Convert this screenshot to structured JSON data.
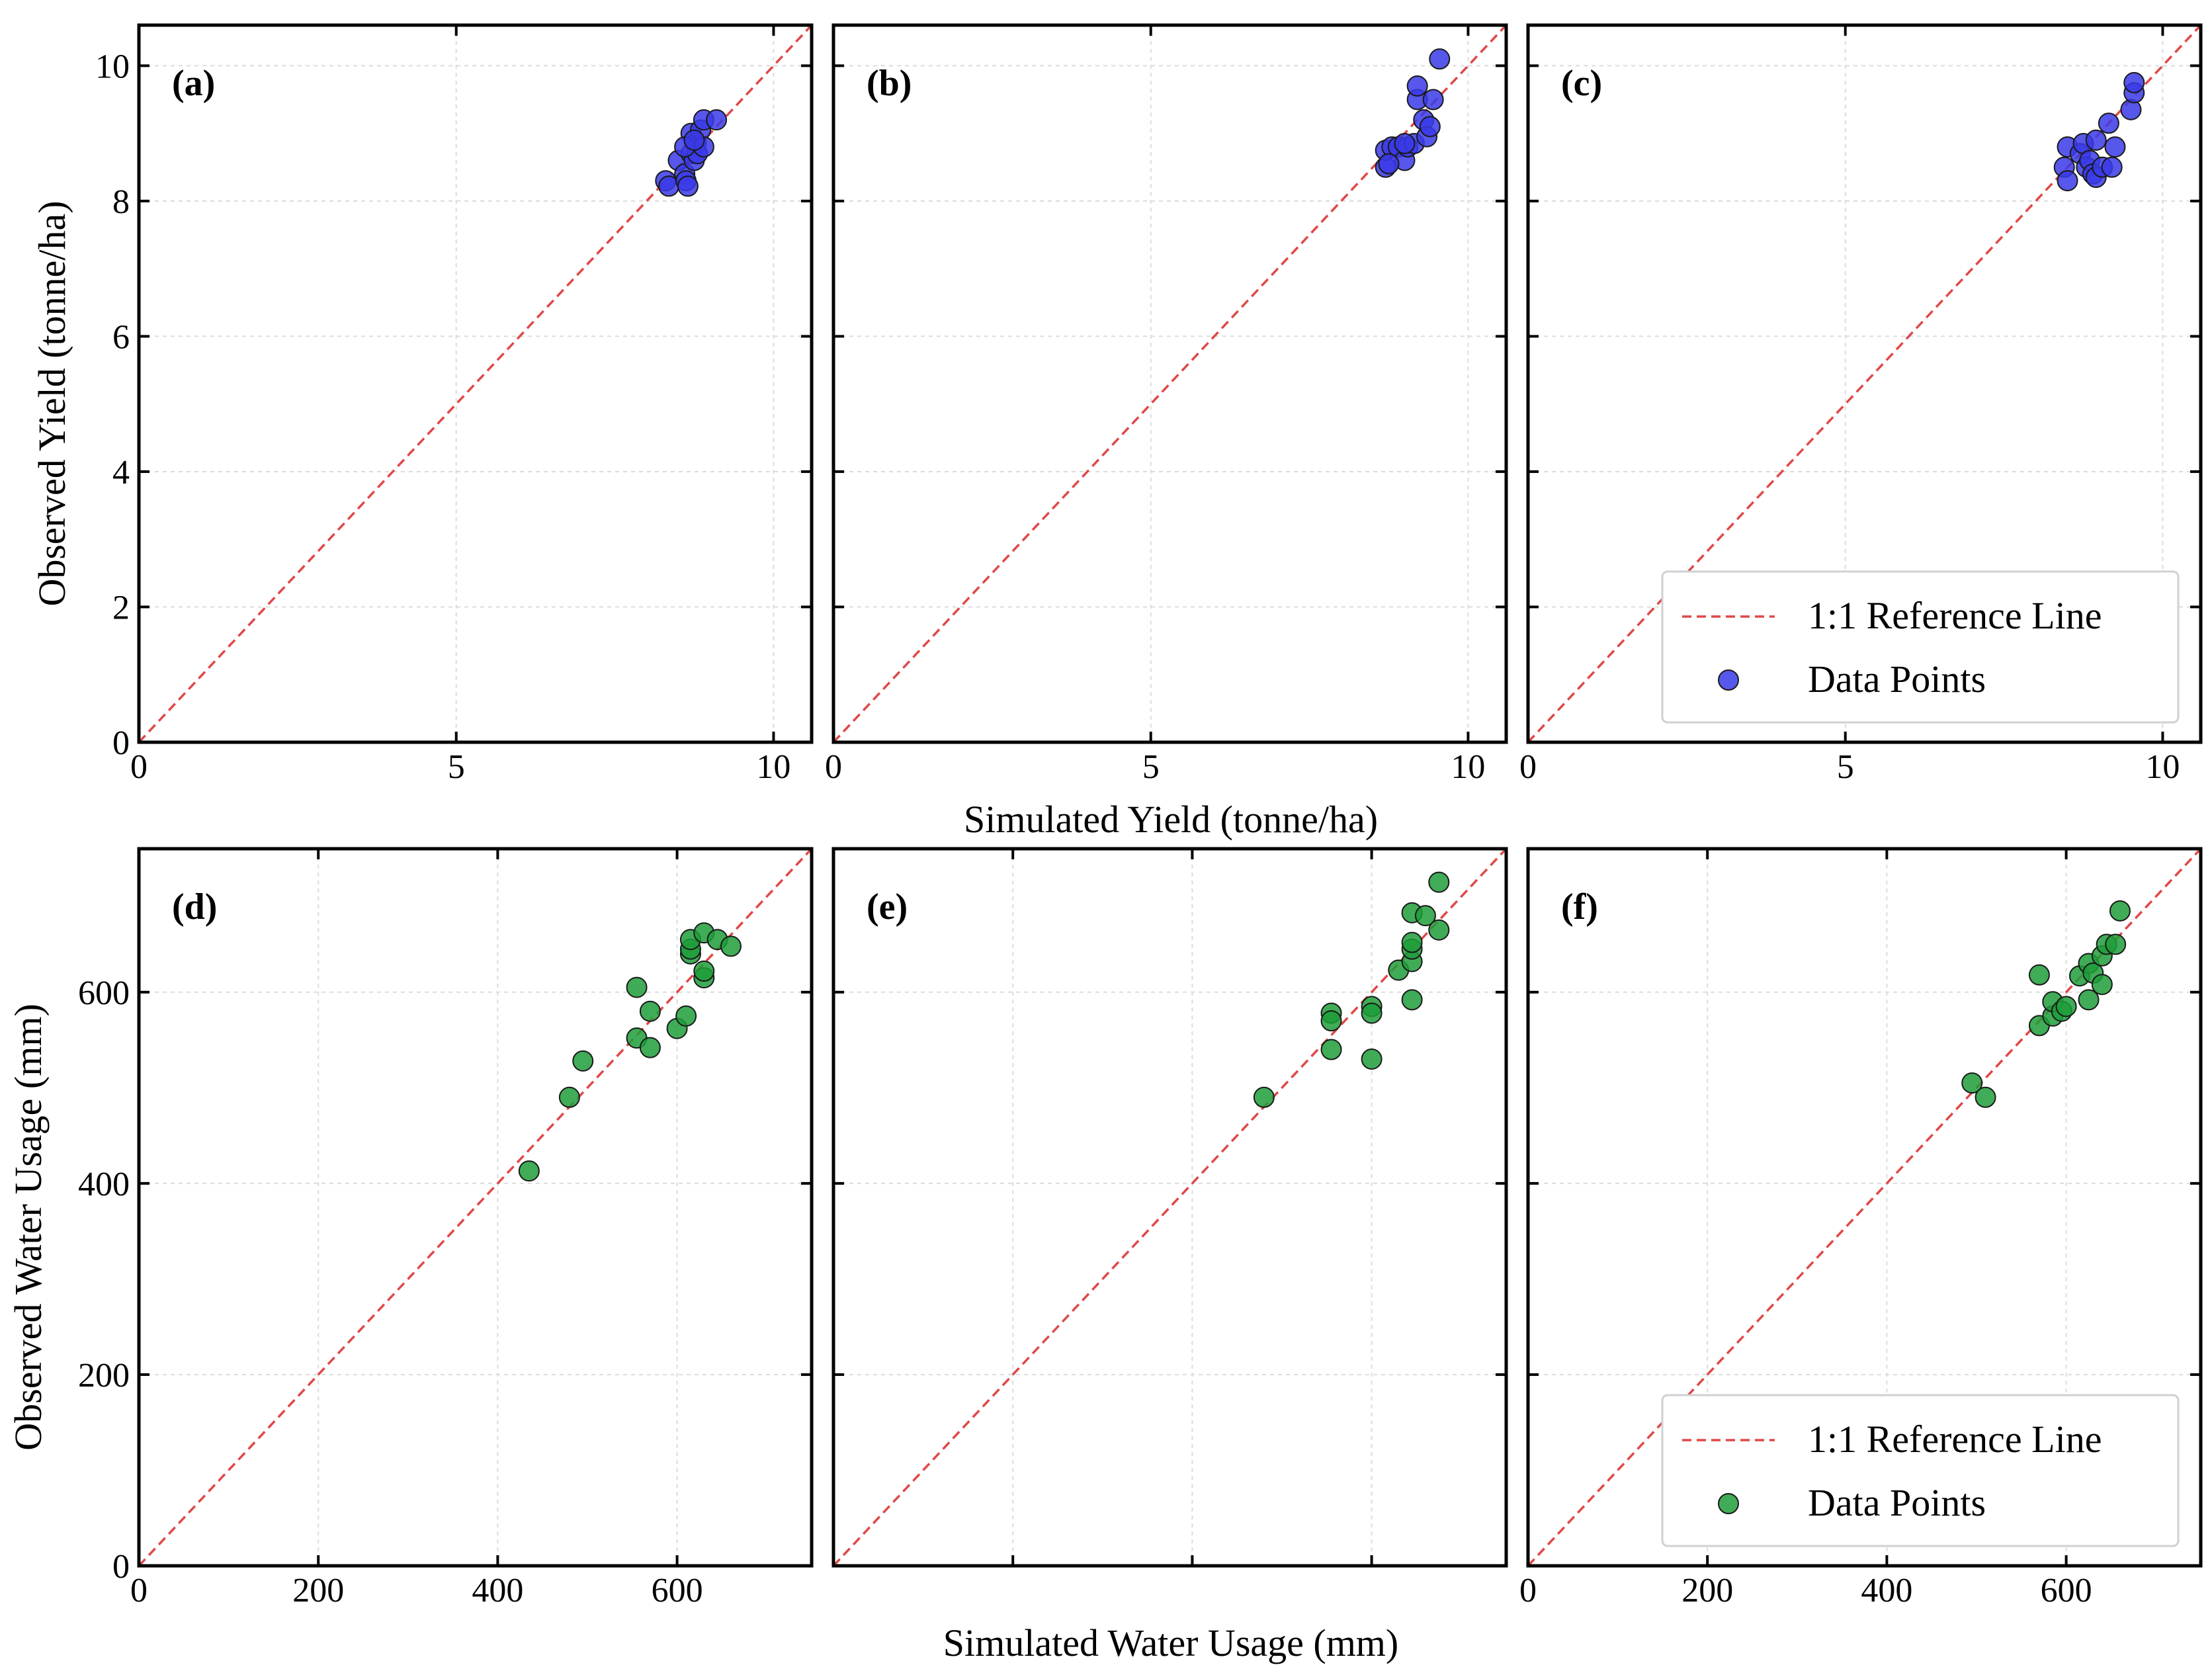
{
  "figure": {
    "xlabel_top": "Simulated Yield (tonne/ha)",
    "ylabel_top": "Observed Yield (tonne/ha)",
    "xlabel_bottom": "Simulated Water Usage (mm)",
    "ylabel_bottom": "Observed Water Usage (mm)"
  },
  "legend": {
    "reference_line": "1:1 Reference Line",
    "data_points": "Data Points"
  },
  "colors": {
    "yield_points": "#3a3ae8",
    "water_points": "#1f9e3a",
    "reference_line": "#e04848"
  },
  "chart_data": [
    {
      "type": "scatter",
      "panel": "(a)",
      "row": 0,
      "col": 0,
      "xlim": [
        0,
        10.6
      ],
      "ylim": [
        0,
        10.6
      ],
      "xticks": [
        0,
        5,
        10
      ],
      "yticks": [
        0,
        2,
        4,
        6,
        8,
        10
      ],
      "show_x_ticklabels": true,
      "show_y_ticklabels": true,
      "point_color": "yield",
      "legend": false,
      "points": [
        [
          8.3,
          8.3
        ],
        [
          8.35,
          8.22
        ],
        [
          8.5,
          8.6
        ],
        [
          8.6,
          8.4
        ],
        [
          8.62,
          8.3
        ],
        [
          8.65,
          8.22
        ],
        [
          8.7,
          8.7
        ],
        [
          8.7,
          9.0
        ],
        [
          8.75,
          8.6
        ],
        [
          8.78,
          8.85
        ],
        [
          8.8,
          8.7
        ],
        [
          8.85,
          9.05
        ],
        [
          8.9,
          8.8
        ],
        [
          8.9,
          9.2
        ],
        [
          9.1,
          9.2
        ],
        [
          8.6,
          8.8
        ],
        [
          8.75,
          8.9
        ]
      ],
      "reference_line": {
        "label": "1:1 Reference Line",
        "from": [
          0,
          0
        ],
        "to": [
          10.6,
          10.6
        ]
      }
    },
    {
      "type": "scatter",
      "panel": "(b)",
      "row": 0,
      "col": 1,
      "xlim": [
        0,
        10.6
      ],
      "ylim": [
        0,
        10.6
      ],
      "xticks": [
        0,
        5,
        10
      ],
      "yticks": [
        0,
        2,
        4,
        6,
        8,
        10
      ],
      "show_x_ticklabels": true,
      "show_y_ticklabels": false,
      "point_color": "yield",
      "legend": false,
      "points": [
        [
          8.7,
          8.5
        ],
        [
          8.7,
          8.75
        ],
        [
          8.8,
          8.8
        ],
        [
          8.9,
          8.8
        ],
        [
          9.0,
          8.6
        ],
        [
          9.05,
          8.8
        ],
        [
          9.15,
          8.85
        ],
        [
          9.2,
          9.5
        ],
        [
          9.2,
          9.7
        ],
        [
          9.3,
          9.2
        ],
        [
          9.35,
          8.95
        ],
        [
          9.4,
          9.1
        ],
        [
          9.45,
          9.5
        ],
        [
          9.55,
          10.1
        ],
        [
          8.75,
          8.55
        ],
        [
          9.0,
          8.85
        ]
      ],
      "reference_line": {
        "label": "1:1 Reference Line",
        "from": [
          0,
          0
        ],
        "to": [
          10.6,
          10.6
        ]
      }
    },
    {
      "type": "scatter",
      "panel": "(c)",
      "row": 0,
      "col": 2,
      "xlim": [
        0,
        10.6
      ],
      "ylim": [
        0,
        10.6
      ],
      "xticks": [
        0,
        5,
        10
      ],
      "yticks": [
        0,
        2,
        4,
        6,
        8,
        10
      ],
      "show_x_ticklabels": true,
      "show_y_ticklabels": false,
      "point_color": "yield",
      "legend": true,
      "points": [
        [
          8.45,
          8.5
        ],
        [
          8.5,
          8.3
        ],
        [
          8.5,
          8.8
        ],
        [
          8.7,
          8.7
        ],
        [
          8.75,
          8.85
        ],
        [
          8.8,
          8.5
        ],
        [
          8.85,
          8.6
        ],
        [
          8.9,
          8.4
        ],
        [
          8.95,
          8.9
        ],
        [
          8.95,
          8.35
        ],
        [
          9.05,
          8.5
        ],
        [
          9.15,
          9.15
        ],
        [
          9.2,
          8.5
        ],
        [
          9.25,
          8.8
        ],
        [
          9.5,
          9.35
        ],
        [
          9.55,
          9.6
        ],
        [
          9.55,
          9.75
        ]
      ],
      "reference_line": {
        "label": "1:1 Reference Line",
        "from": [
          0,
          0
        ],
        "to": [
          10.6,
          10.6
        ]
      }
    },
    {
      "type": "scatter",
      "panel": "(d)",
      "row": 1,
      "col": 0,
      "xlim": [
        0,
        750
      ],
      "ylim": [
        0,
        750
      ],
      "xticks": [
        0,
        200,
        400,
        600
      ],
      "yticks": [
        0,
        200,
        400,
        600
      ],
      "show_x_ticklabels": true,
      "show_y_ticklabels": true,
      "point_color": "water",
      "legend": false,
      "points": [
        [
          435,
          413
        ],
        [
          480,
          490
        ],
        [
          495,
          528
        ],
        [
          555,
          605
        ],
        [
          555,
          552
        ],
        [
          570,
          580
        ],
        [
          570,
          542
        ],
        [
          600,
          562
        ],
        [
          610,
          575
        ],
        [
          615,
          640
        ],
        [
          615,
          645
        ],
        [
          615,
          655
        ],
        [
          630,
          615
        ],
        [
          630,
          622
        ],
        [
          630,
          662
        ],
        [
          645,
          655
        ],
        [
          660,
          648
        ]
      ],
      "reference_line": {
        "label": "1:1 Reference Line",
        "from": [
          0,
          0
        ],
        "to": [
          750,
          750
        ]
      }
    },
    {
      "type": "scatter",
      "panel": "(e)",
      "row": 1,
      "col": 1,
      "xlim": [
        0,
        750
      ],
      "ylim": [
        0,
        750
      ],
      "xticks": [
        0,
        200,
        400,
        600
      ],
      "yticks": [
        0,
        200,
        400,
        600
      ],
      "show_x_ticklabels": false,
      "show_y_ticklabels": false,
      "point_color": "water",
      "legend": false,
      "points": [
        [
          480,
          490
        ],
        [
          555,
          578
        ],
        [
          555,
          570
        ],
        [
          555,
          540
        ],
        [
          600,
          585
        ],
        [
          600,
          578
        ],
        [
          600,
          530
        ],
        [
          630,
          623
        ],
        [
          645,
          592
        ],
        [
          645,
          632
        ],
        [
          645,
          645
        ],
        [
          645,
          652
        ],
        [
          645,
          683
        ],
        [
          660,
          680
        ],
        [
          675,
          665
        ],
        [
          675,
          715
        ]
      ],
      "reference_line": {
        "label": "1:1 Reference Line",
        "from": [
          0,
          0
        ],
        "to": [
          750,
          750
        ]
      }
    },
    {
      "type": "scatter",
      "panel": "(f)",
      "row": 1,
      "col": 2,
      "xlim": [
        0,
        750
      ],
      "ylim": [
        0,
        750
      ],
      "xticks": [
        0,
        200,
        400,
        600
      ],
      "yticks": [
        0,
        200,
        400,
        600
      ],
      "show_x_ticklabels": true,
      "show_y_ticklabels": false,
      "point_color": "water",
      "legend": true,
      "points": [
        [
          495,
          505
        ],
        [
          510,
          490
        ],
        [
          570,
          565
        ],
        [
          570,
          618
        ],
        [
          585,
          575
        ],
        [
          585,
          590
        ],
        [
          595,
          580
        ],
        [
          600,
          585
        ],
        [
          615,
          617
        ],
        [
          625,
          630
        ],
        [
          625,
          592
        ],
        [
          630,
          620
        ],
        [
          640,
          608
        ],
        [
          640,
          638
        ],
        [
          645,
          650
        ],
        [
          655,
          650
        ],
        [
          660,
          685
        ]
      ],
      "reference_line": {
        "label": "1:1 Reference Line",
        "from": [
          0,
          0
        ],
        "to": [
          750,
          750
        ]
      }
    }
  ]
}
